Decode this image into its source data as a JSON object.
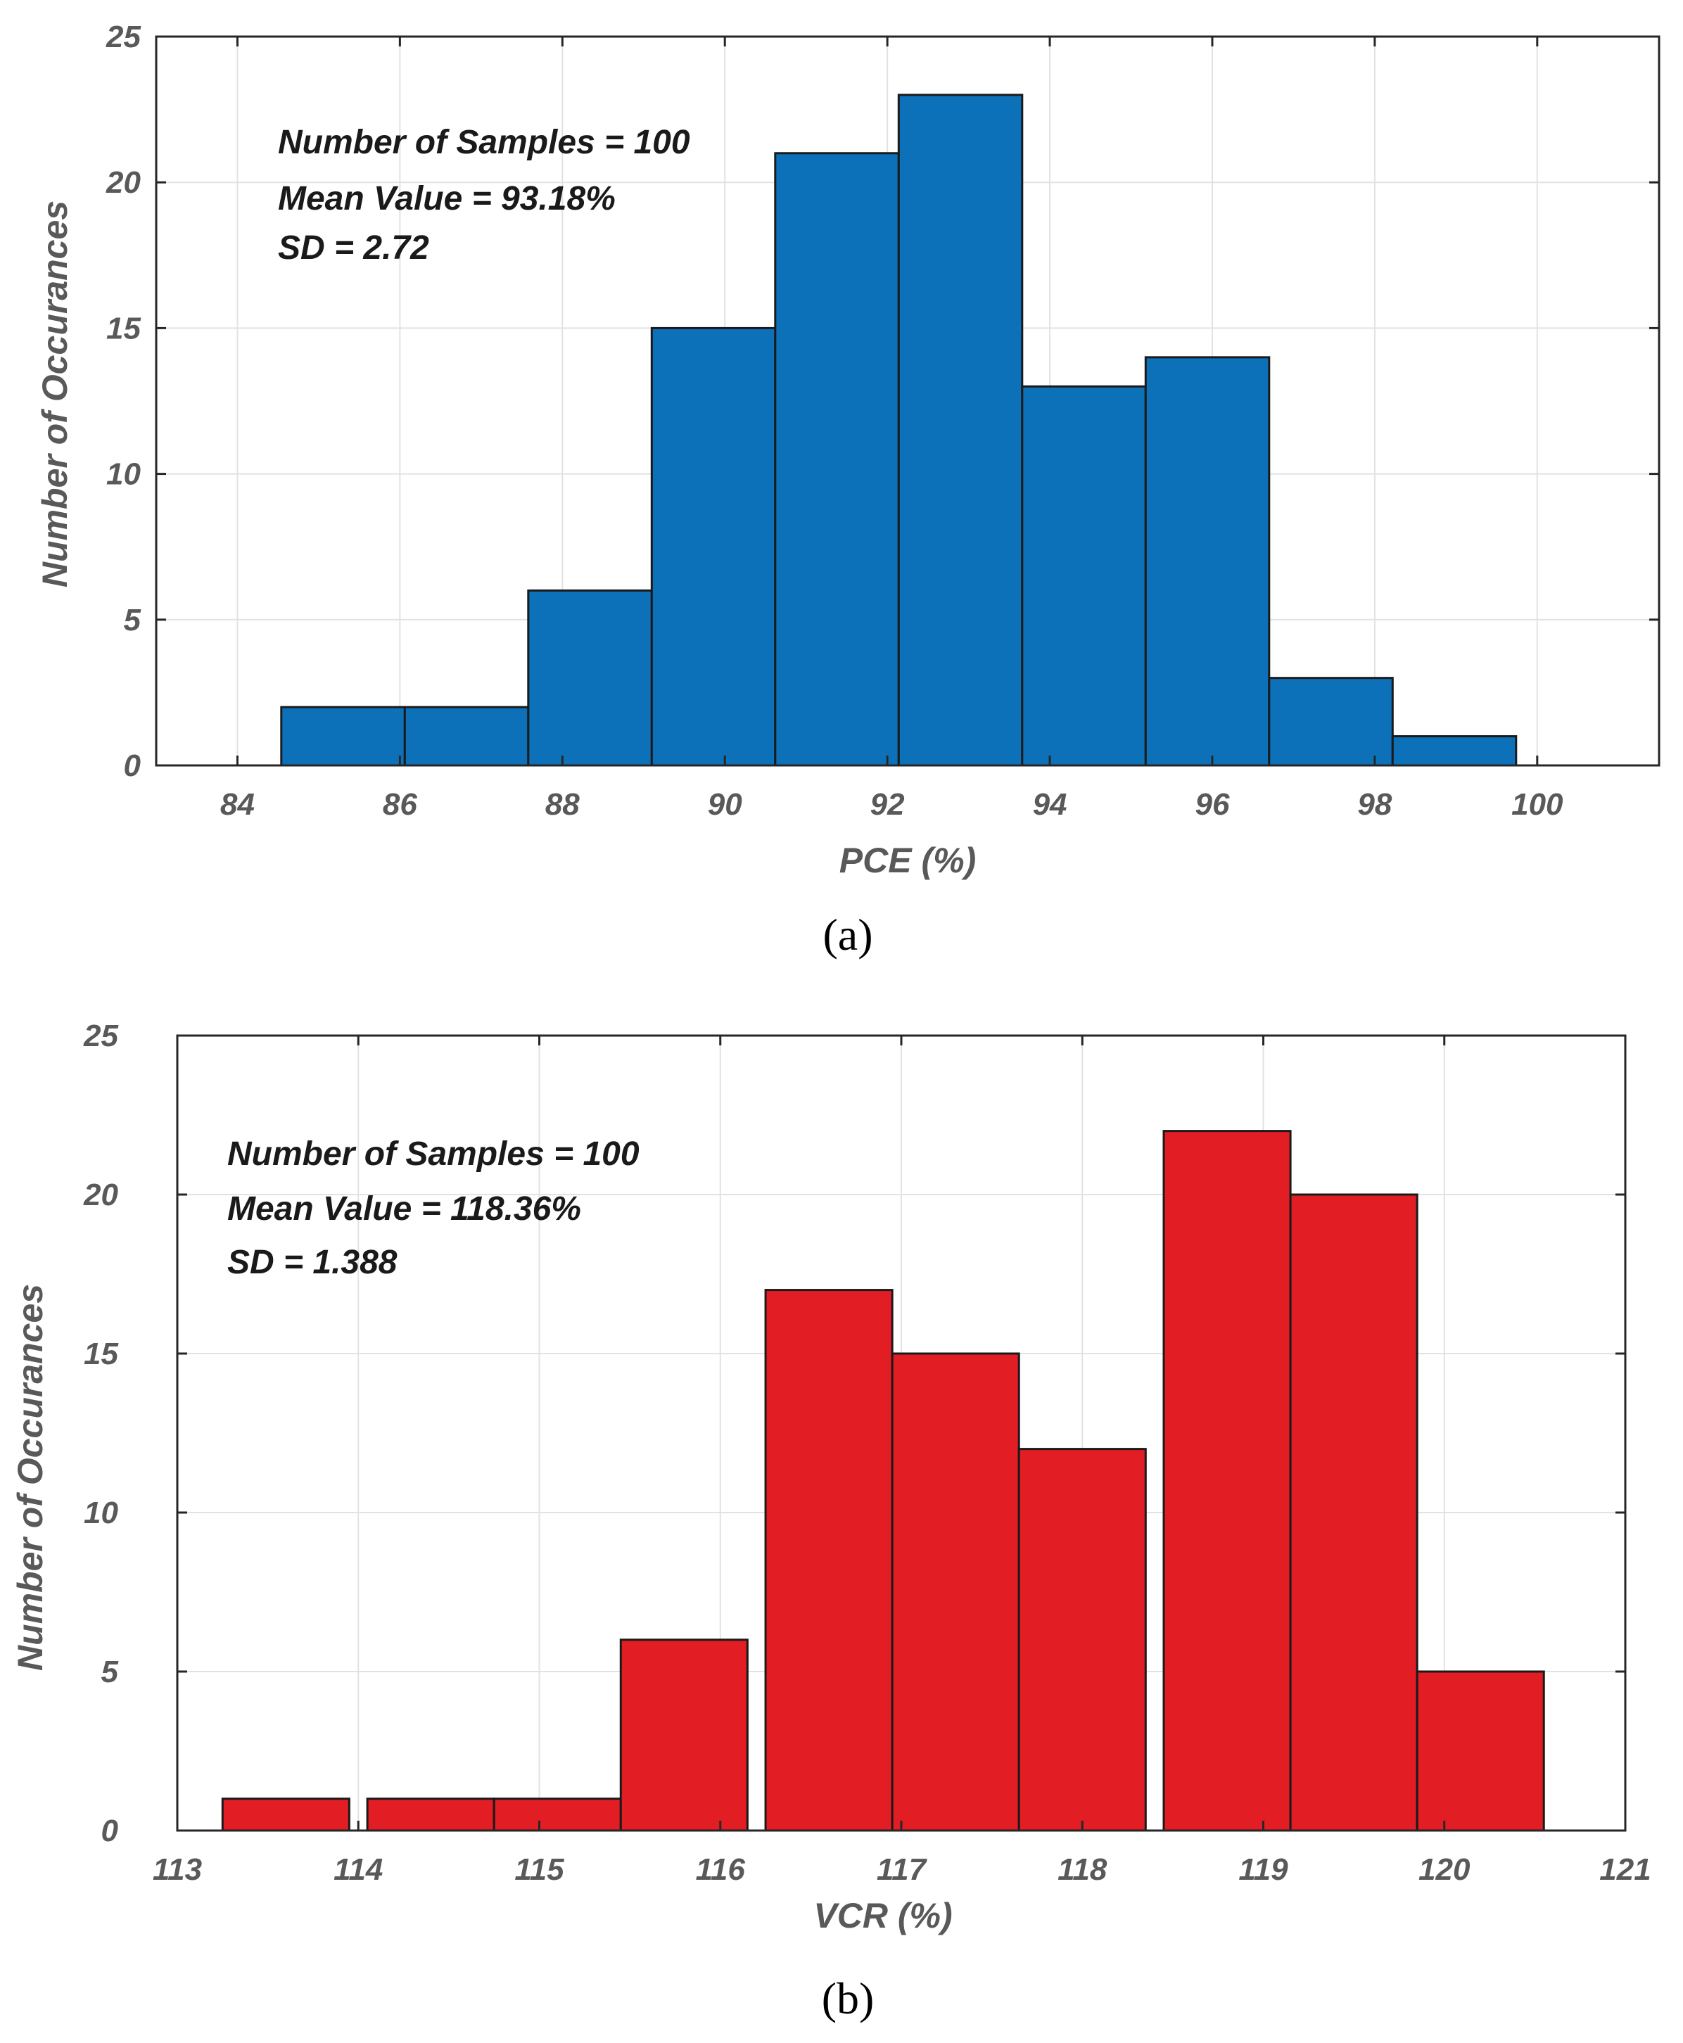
{
  "chart_data": [
    {
      "type": "bar",
      "id": "a",
      "caption": "(a)",
      "xlabel": "PCE (%)",
      "ylabel": "Number of Occurances",
      "xlim": [
        83,
        101.5
      ],
      "ylim": [
        0,
        25
      ],
      "xticks": [
        84,
        86,
        88,
        90,
        92,
        94,
        96,
        98,
        100
      ],
      "yticks": [
        0,
        5,
        10,
        15,
        20,
        25
      ],
      "grid": true,
      "bar_color": "#0d71b9",
      "bin_width": 1.52,
      "bars": [
        {
          "x": 85.3,
          "value": 2
        },
        {
          "x": 86.82,
          "value": 2
        },
        {
          "x": 88.34,
          "value": 6
        },
        {
          "x": 89.86,
          "value": 15
        },
        {
          "x": 91.38,
          "value": 21
        },
        {
          "x": 92.9,
          "value": 23
        },
        {
          "x": 94.42,
          "value": 13
        },
        {
          "x": 95.94,
          "value": 14
        },
        {
          "x": 97.46,
          "value": 3
        },
        {
          "x": 98.98,
          "value": 1
        }
      ],
      "annotations": [
        "Number of Samples = 100",
        "Mean Value = 93.18%",
        "SD = 2.72"
      ]
    },
    {
      "type": "bar",
      "id": "b",
      "caption": "(b)",
      "xlabel": "VCR (%)",
      "ylabel": "Number of Occurances",
      "xlim": [
        113,
        121
      ],
      "ylim": [
        0,
        25
      ],
      "xticks": [
        113,
        114,
        115,
        116,
        117,
        118,
        119,
        120,
        121
      ],
      "yticks": [
        0,
        5,
        10,
        15,
        20,
        25
      ],
      "grid": true,
      "bar_color": "#e31d24",
      "bin_width": 0.7,
      "bars": [
        {
          "x": 113.6,
          "value": 1
        },
        {
          "x": 114.4,
          "value": 1
        },
        {
          "x": 115.1,
          "value": 1
        },
        {
          "x": 115.8,
          "value": 6
        },
        {
          "x": 116.6,
          "value": 17
        },
        {
          "x": 117.3,
          "value": 15
        },
        {
          "x": 118.0,
          "value": 12
        },
        {
          "x": 118.8,
          "value": 22
        },
        {
          "x": 119.5,
          "value": 20
        },
        {
          "x": 120.2,
          "value": 5
        }
      ],
      "annotations": [
        "Number of Samples = 100",
        "Mean Value = 118.36%",
        "SD = 1.388"
      ]
    }
  ]
}
